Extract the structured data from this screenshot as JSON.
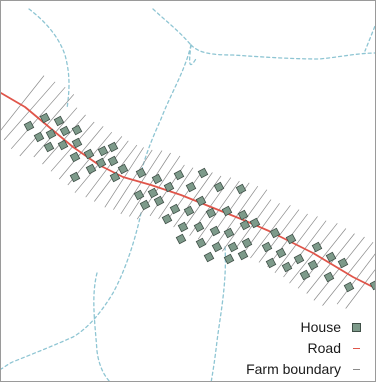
{
  "legend": {
    "house_label": "House",
    "road_label": "Road",
    "farm_boundary_label": "Farm boundary"
  },
  "colors": {
    "house_fill": "#7d9a8a",
    "house_stroke": "#3f4f47",
    "road": "#e0554a",
    "farm_boundary": "#8a8a8a",
    "stream": "#8ec5d3"
  }
}
